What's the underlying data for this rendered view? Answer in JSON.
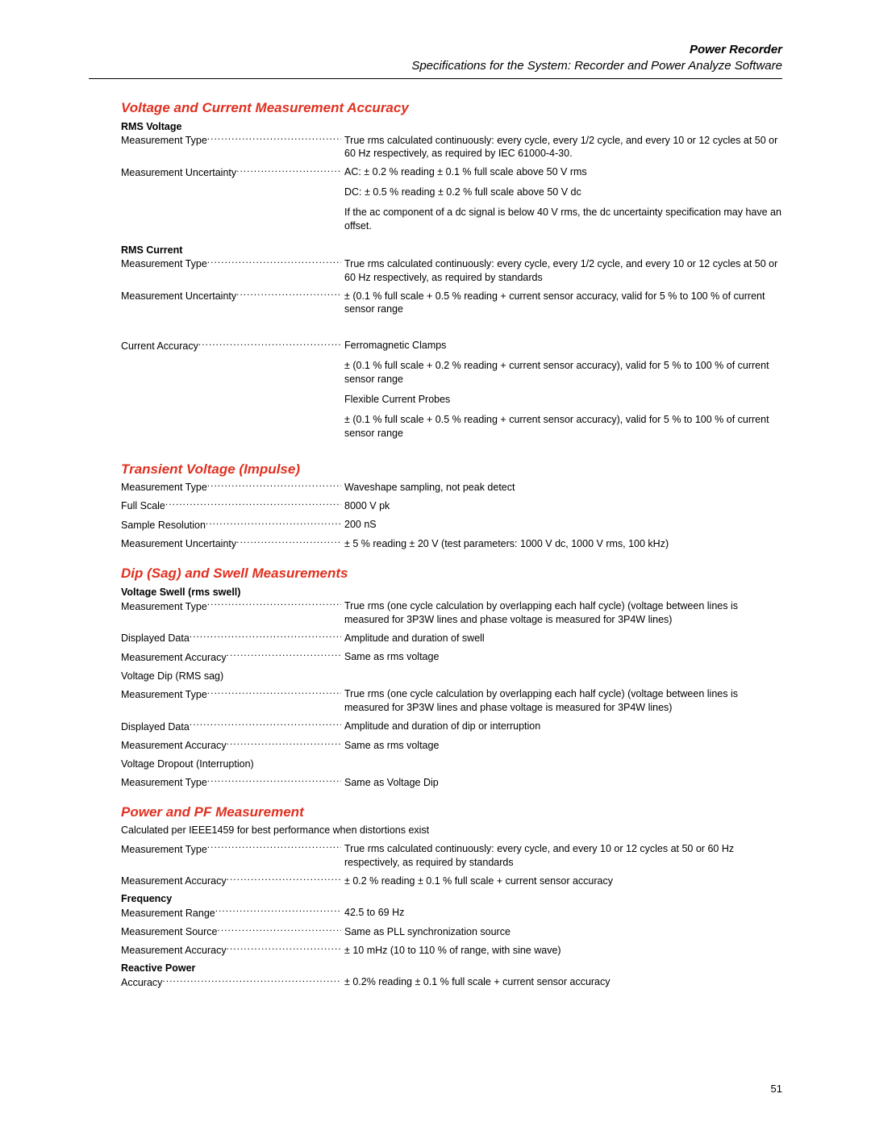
{
  "header": {
    "title": "Power Recorder",
    "subtitle": "Specifications for the System: Recorder and Power Analyze Software"
  },
  "page_number": "51",
  "sections": [
    {
      "title": "Voltage and Current Measurement Accuracy",
      "groups": [
        {
          "subhead": "RMS Voltage",
          "rows": [
            {
              "label": "Measurement Type",
              "values": [
                "True rms calculated continuously: every cycle, every 1/2 cycle, and every 10 or 12 cycles at 50 or 60 Hz respectively, as required by IEC 61000-4-30."
              ]
            },
            {
              "label": "Measurement Uncertainty",
              "values": [
                "AC: ± 0.2 % reading ± 0.1 % full scale above 50 V rms",
                "DC: ± 0.5 % reading ± 0.2 % full scale above 50 V dc",
                "If the ac component of a dc signal is below 40 V rms, the dc uncertainty specification may have an offset."
              ]
            }
          ]
        },
        {
          "subhead": "RMS Current",
          "rows": [
            {
              "label": "Measurement Type",
              "values": [
                "True rms calculated continuously: every cycle, every 1/2 cycle, and every 10 or 12 cycles at 50 or 60 Hz respectively, as required by standards"
              ]
            },
            {
              "label": "Measurement Uncertainty",
              "values": [
                "± (0.1 % full scale + 0.5 % reading + current sensor accuracy, valid for 5 % to 100 % of current sensor range"
              ],
              "gap_after": true
            },
            {
              "label": "Current Accuracy",
              "values": [
                "Ferromagnetic Clamps",
                "± (0.1 % full scale + 0.2 % reading + current sensor accuracy), valid for 5 % to 100 % of current sensor range",
                "Flexible Current Probes",
                "± (0.1 % full scale + 0.5 % reading + current sensor accuracy), valid for 5 % to 100 % of current sensor range"
              ]
            }
          ]
        }
      ]
    },
    {
      "title": "Transient Voltage (Impulse)",
      "groups": [
        {
          "rows": [
            {
              "label": "Measurement Type",
              "values": [
                "Waveshape sampling, not peak detect"
              ]
            },
            {
              "label": "Full Scale",
              "values": [
                "8000 V pk"
              ]
            },
            {
              "label": "Sample Resolution",
              "values": [
                "200 nS"
              ]
            },
            {
              "label": "Measurement Uncertainty",
              "values": [
                "± 5 % reading ± 20 V (test parameters: 1000 V dc, 1000 V rms, 100 kHz)"
              ]
            }
          ]
        }
      ]
    },
    {
      "title": "Dip (Sag) and Swell Measurements",
      "groups": [
        {
          "subhead": "Voltage Swell (rms swell)",
          "rows": [
            {
              "label": "Measurement Type",
              "values": [
                "True rms (one cycle calculation by overlapping each half cycle) (voltage between lines is measured for 3P3W lines and phase voltage is measured for 3P4W lines)"
              ]
            },
            {
              "label": "Displayed Data",
              "values": [
                "Amplitude and duration of swell"
              ]
            },
            {
              "label": "Measurement Accuracy",
              "values": [
                "Same as rms voltage"
              ]
            },
            {
              "note": "Voltage Dip (RMS sag)"
            },
            {
              "label": "Measurement Type",
              "values": [
                "True rms (one cycle calculation by overlapping each half cycle) (voltage between lines is measured for 3P3W lines and phase voltage is measured for 3P4W lines)"
              ]
            },
            {
              "label": "Displayed Data",
              "values": [
                "Amplitude and duration of dip or interruption"
              ]
            },
            {
              "label": "Measurement Accuracy",
              "values": [
                "Same as rms voltage"
              ]
            },
            {
              "note": "Voltage Dropout (Interruption)"
            },
            {
              "label": "Measurement Type",
              "values": [
                "Same as Voltage Dip"
              ]
            }
          ]
        }
      ]
    },
    {
      "title": "Power and PF Measurement",
      "groups": [
        {
          "rows": [
            {
              "note": "Calculated per IEEE1459 for best performance when distortions exist"
            },
            {
              "label": "Measurement Type",
              "values": [
                "True rms calculated continuously: every cycle, and every 10 or 12 cycles at 50 or 60 Hz respectively, as required by standards"
              ]
            },
            {
              "label": "Measurement Accuracy",
              "values": [
                "± 0.2 % reading ± 0.1 % full scale + current sensor accuracy"
              ]
            }
          ]
        },
        {
          "subhead": "Frequency",
          "rows": [
            {
              "label": "Measurement Range",
              "values": [
                "42.5 to 69 Hz"
              ]
            },
            {
              "label": "Measurement Source",
              "values": [
                "Same as PLL synchronization source"
              ]
            },
            {
              "label": "Measurement Accuracy",
              "values": [
                "± 10 mHz (10 to 110 % of range, with sine wave)"
              ]
            }
          ]
        },
        {
          "subhead": "Reactive Power",
          "rows": [
            {
              "label": "Accuracy",
              "values": [
                "± 0.2% reading ± 0.1 % full scale + current sensor accuracy"
              ]
            }
          ]
        }
      ]
    }
  ]
}
